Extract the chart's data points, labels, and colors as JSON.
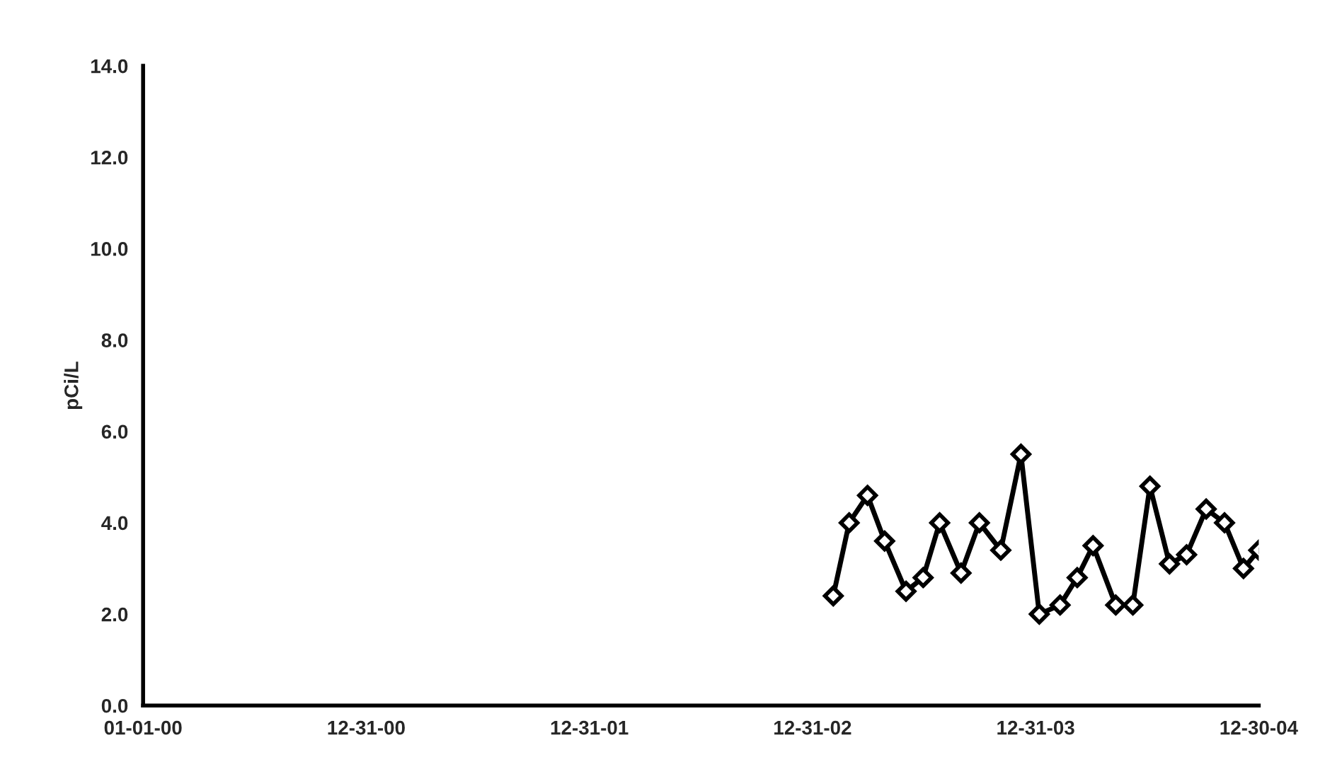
{
  "chart_data": {
    "type": "line",
    "ylabel": "pCi/L",
    "x": [
      "2003-02-03",
      "2003-03-01",
      "2003-03-31",
      "2003-04-28",
      "2003-06-02",
      "2003-06-30",
      "2003-07-27",
      "2003-08-31",
      "2003-09-30",
      "2003-11-04",
      "2003-12-07",
      "2004-01-06",
      "2004-02-09",
      "2004-03-08",
      "2004-04-03",
      "2004-05-10",
      "2004-06-07",
      "2004-07-05",
      "2004-08-06",
      "2004-09-03",
      "2004-10-05",
      "2004-11-04",
      "2004-12-05",
      "2004-12-30"
    ],
    "series": [
      {
        "color": "#000000",
        "values": [
          2.4,
          4.0,
          4.6,
          3.6,
          2.5,
          2.8,
          4.0,
          2.9,
          4.0,
          3.4,
          5.5,
          2.0,
          2.2,
          2.8,
          3.5,
          2.2,
          2.2,
          4.8,
          3.1,
          3.3,
          4.3,
          4.0,
          3.0,
          3.4
        ]
      }
    ],
    "xlim": [
      "2000-01-01",
      "2004-12-30"
    ],
    "xticks": [
      {
        "value": "2000-01-01",
        "label": "01-01-00"
      },
      {
        "value": "2000-12-31",
        "label": "12-31-00"
      },
      {
        "value": "2001-12-31",
        "label": "12-31-01"
      },
      {
        "value": "2002-12-31",
        "label": "12-31-02"
      },
      {
        "value": "2003-12-31",
        "label": "12-31-03"
      },
      {
        "value": "2004-12-30",
        "label": "12-30-04"
      }
    ],
    "ylim": [
      0,
      14
    ],
    "yticks": [
      {
        "value": 0,
        "label": "0.0"
      },
      {
        "value": 2,
        "label": "2.0"
      },
      {
        "value": 4,
        "label": "4.0"
      },
      {
        "value": 6,
        "label": "6.0"
      },
      {
        "value": 8,
        "label": "8.0"
      },
      {
        "value": 10,
        "label": "10.0"
      },
      {
        "value": 12,
        "label": "12.0"
      },
      {
        "value": 14,
        "label": "14.0"
      }
    ],
    "grid": false,
    "legend": false,
    "marker": "diamond",
    "line_style": "solid"
  }
}
